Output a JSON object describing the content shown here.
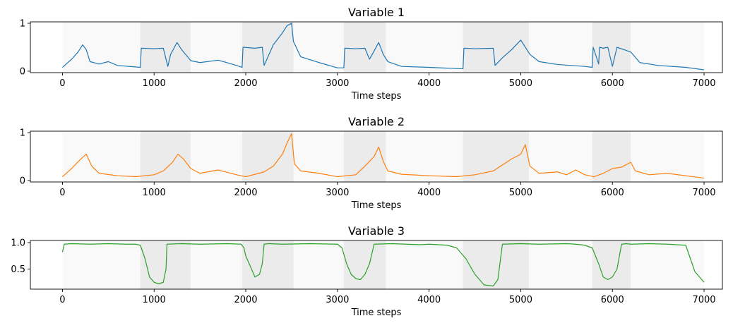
{
  "chart_data": [
    {
      "type": "line",
      "title": "Variable 1",
      "xlabel": "Time steps",
      "ylabel": "",
      "xlim": [
        -350,
        7200
      ],
      "ylim": [
        -0.03,
        1.03
      ],
      "xticks": [
        0,
        1000,
        2000,
        3000,
        4000,
        5000,
        6000,
        7000
      ],
      "yticks": [
        0,
        1
      ],
      "grid": false,
      "series": [
        {
          "color": "#1f77b4",
          "x": [
            0,
            100,
            170,
            220,
            260,
            300,
            400,
            500,
            600,
            850,
            860,
            1000,
            1100,
            1150,
            1180,
            1250,
            1300,
            1400,
            1500,
            1700,
            1900,
            1960,
            1970,
            2100,
            2180,
            2200,
            2300,
            2400,
            2450,
            2500,
            2520,
            2600,
            2800,
            3000,
            3070,
            3080,
            3200,
            3300,
            3350,
            3400,
            3450,
            3500,
            3550,
            3700,
            4000,
            4370,
            4380,
            4500,
            4700,
            4720,
            4800,
            4900,
            5000,
            5100,
            5200,
            5400,
            5700,
            5780,
            5790,
            5850,
            5860,
            5900,
            5950,
            6000,
            6050,
            6200,
            6300,
            6500,
            6800,
            7000
          ],
          "y": [
            0.08,
            0.25,
            0.4,
            0.55,
            0.45,
            0.2,
            0.15,
            0.2,
            0.12,
            0.08,
            0.48,
            0.47,
            0.48,
            0.1,
            0.35,
            0.6,
            0.45,
            0.22,
            0.18,
            0.23,
            0.12,
            0.08,
            0.5,
            0.48,
            0.5,
            0.12,
            0.55,
            0.8,
            0.95,
            1.0,
            0.62,
            0.3,
            0.18,
            0.07,
            0.07,
            0.48,
            0.47,
            0.48,
            0.25,
            0.42,
            0.6,
            0.35,
            0.2,
            0.1,
            0.08,
            0.05,
            0.48,
            0.47,
            0.48,
            0.12,
            0.28,
            0.45,
            0.65,
            0.35,
            0.2,
            0.14,
            0.1,
            0.08,
            0.5,
            0.15,
            0.5,
            0.48,
            0.5,
            0.1,
            0.5,
            0.4,
            0.18,
            0.12,
            0.08,
            0.03
          ]
        }
      ]
    },
    {
      "type": "line",
      "title": "Variable 2",
      "xlabel": "Time steps",
      "ylabel": "",
      "xlim": [
        -350,
        7200
      ],
      "ylim": [
        -0.03,
        1.03
      ],
      "xticks": [
        0,
        1000,
        2000,
        3000,
        4000,
        5000,
        6000,
        7000
      ],
      "yticks": [
        0,
        1
      ],
      "grid": false,
      "series": [
        {
          "color": "#ff7f0e",
          "x": [
            0,
            100,
            200,
            260,
            320,
            400,
            600,
            800,
            1000,
            1100,
            1200,
            1260,
            1320,
            1400,
            1500,
            1700,
            1900,
            2000,
            2200,
            2300,
            2400,
            2450,
            2500,
            2530,
            2600,
            2800,
            3000,
            3200,
            3300,
            3400,
            3450,
            3500,
            3550,
            3700,
            4000,
            4300,
            4500,
            4700,
            4900,
            5000,
            5050,
            5100,
            5200,
            5400,
            5500,
            5600,
            5700,
            5800,
            5900,
            6000,
            6100,
            6200,
            6250,
            6400,
            6600,
            6800,
            7000
          ],
          "y": [
            0.08,
            0.25,
            0.45,
            0.55,
            0.3,
            0.15,
            0.1,
            0.08,
            0.12,
            0.2,
            0.38,
            0.55,
            0.45,
            0.25,
            0.15,
            0.22,
            0.12,
            0.08,
            0.18,
            0.3,
            0.55,
            0.78,
            0.98,
            0.35,
            0.2,
            0.15,
            0.08,
            0.12,
            0.3,
            0.5,
            0.7,
            0.4,
            0.2,
            0.13,
            0.1,
            0.08,
            0.12,
            0.2,
            0.45,
            0.55,
            0.75,
            0.3,
            0.15,
            0.18,
            0.12,
            0.22,
            0.12,
            0.08,
            0.15,
            0.25,
            0.28,
            0.38,
            0.2,
            0.12,
            0.15,
            0.1,
            0.05
          ]
        }
      ]
    },
    {
      "type": "line",
      "title": "Variable 3",
      "xlabel": "Time steps",
      "ylabel": "",
      "xlim": [
        -350,
        7200
      ],
      "ylim": [
        0.12,
        1.04
      ],
      "xticks": [
        0,
        1000,
        2000,
        3000,
        4000,
        5000,
        6000,
        7000
      ],
      "yticks": [
        0.5,
        1.0
      ],
      "ytick_labels": [
        "0.5",
        "1.0"
      ],
      "grid": false,
      "series": [
        {
          "color": "#2ca02c",
          "x": [
            0,
            20,
            100,
            300,
            500,
            700,
            800,
            850,
            900,
            950,
            1000,
            1050,
            1100,
            1130,
            1140,
            1300,
            1500,
            1800,
            1950,
            1980,
            2000,
            2050,
            2100,
            2150,
            2180,
            2200,
            2250,
            2400,
            2700,
            3000,
            3050,
            3100,
            3150,
            3200,
            3250,
            3300,
            3350,
            3400,
            3600,
            3900,
            4000,
            4200,
            4300,
            4400,
            4500,
            4600,
            4700,
            4750,
            4800,
            5000,
            5200,
            5500,
            5600,
            5700,
            5780,
            5850,
            5900,
            5950,
            6000,
            6050,
            6100,
            6150,
            6200,
            6400,
            6600,
            6800,
            6850,
            6900,
            6950,
            7000
          ],
          "y": [
            0.82,
            0.97,
            0.98,
            0.97,
            0.98,
            0.97,
            0.97,
            0.95,
            0.7,
            0.35,
            0.25,
            0.22,
            0.25,
            0.5,
            0.97,
            0.98,
            0.97,
            0.98,
            0.97,
            0.9,
            0.75,
            0.55,
            0.35,
            0.4,
            0.6,
            0.97,
            0.98,
            0.97,
            0.98,
            0.97,
            0.9,
            0.6,
            0.4,
            0.32,
            0.3,
            0.4,
            0.6,
            0.97,
            0.98,
            0.96,
            0.97,
            0.95,
            0.9,
            0.7,
            0.4,
            0.2,
            0.18,
            0.3,
            0.97,
            0.98,
            0.97,
            0.98,
            0.97,
            0.95,
            0.9,
            0.6,
            0.35,
            0.3,
            0.35,
            0.5,
            0.97,
            0.98,
            0.97,
            0.98,
            0.97,
            0.95,
            0.7,
            0.45,
            0.35,
            0.25
          ]
        }
      ]
    }
  ],
  "regions": {
    "spans": [
      [
        0,
        850
      ],
      [
        850,
        1400
      ],
      [
        1400,
        1960
      ],
      [
        1960,
        2520
      ],
      [
        2520,
        3070
      ],
      [
        3070,
        3530
      ],
      [
        3530,
        4370
      ],
      [
        4370,
        5090
      ],
      [
        5090,
        5780
      ],
      [
        5780,
        6200
      ],
      [
        6200,
        7000
      ]
    ],
    "light_color": "#f9f9f9",
    "dark_color": "#ebebeb"
  }
}
